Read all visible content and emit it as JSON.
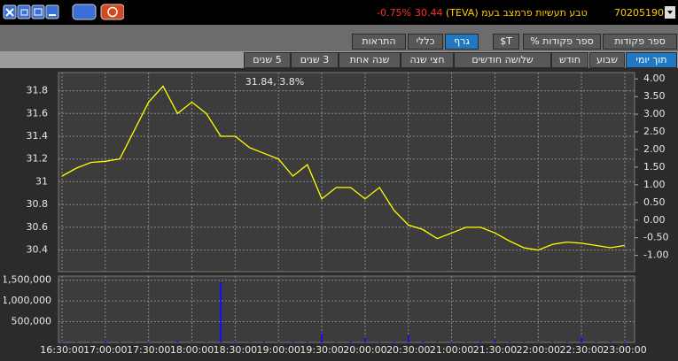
{
  "header": {
    "account": "70205190",
    "name": "טבע תעשיות פרמצב בעמ (TEVA)",
    "price": "30.44",
    "change": "-0.75%"
  },
  "tabs": {
    "items": [
      "ספר פקודות",
      "ספר פקודות %",
      "T$",
      "גרף",
      "כללי",
      "התראות"
    ],
    "active": 3
  },
  "periods": {
    "items": [
      "תוך יומי",
      "שבוע",
      "חודש",
      "שלושה חודשים",
      "חצי שנה",
      "שנה אחת",
      "3 שנים",
      "5 שנים"
    ],
    "active": 0
  },
  "chart_data": {
    "type": "line",
    "annotation": "31.84, 3.8%",
    "grid": true,
    "x": [
      "16:30:00",
      "16:40:00",
      "16:50:00",
      "17:00:00",
      "17:10:00",
      "17:20:00",
      "17:30:00",
      "17:40:00",
      "17:50:00",
      "18:00:00",
      "18:10:00",
      "18:20:00",
      "18:30:00",
      "18:40:00",
      "18:50:00",
      "19:00:00",
      "19:10:00",
      "19:20:00",
      "19:30:00",
      "19:40:00",
      "19:50:00",
      "20:00:00",
      "20:10:00",
      "20:20:00",
      "20:30:00",
      "20:40:00",
      "20:50:00",
      "21:00:00",
      "21:10:00",
      "21:20:00",
      "21:30:00",
      "21:40:00",
      "21:50:00",
      "22:00:00",
      "22:10:00",
      "22:20:00",
      "22:30:00",
      "22:40:00",
      "22:50:00",
      "23:00:00"
    ],
    "series": [
      {
        "color": "#ffff00",
        "values": [
          31.05,
          31.12,
          31.17,
          31.18,
          31.2,
          31.45,
          31.7,
          31.84,
          31.6,
          31.7,
          31.6,
          31.4,
          31.4,
          31.3,
          31.25,
          31.2,
          31.05,
          31.15,
          30.85,
          30.95,
          30.95,
          30.85,
          30.95,
          30.75,
          30.62,
          30.58,
          30.5,
          30.55,
          30.6,
          30.6,
          30.55,
          30.48,
          30.42,
          30.4,
          30.45,
          30.47,
          30.46,
          30.44,
          30.42,
          30.44
        ]
      }
    ],
    "ylim": [
      30.21,
      31.96
    ],
    "yticks": [
      30.4,
      30.6,
      30.8,
      31,
      31.2,
      31.4,
      31.6,
      31.8
    ],
    "y2lim": [
      -1.46,
      4.18
    ],
    "y2ticks": [
      {
        "value": 4,
        "label": "4.00"
      },
      {
        "value": 3.5,
        "label": "3.50"
      },
      {
        "value": 3,
        "label": "3.00"
      },
      {
        "value": 2.5,
        "label": "2.50"
      },
      {
        "value": 2,
        "label": "2.00"
      },
      {
        "value": 1.5,
        "label": "1.50"
      },
      {
        "value": 1,
        "label": "1.00"
      },
      {
        "value": 0.5,
        "label": "0.50"
      },
      {
        "value": 0,
        "label": "0.00"
      },
      {
        "value": -0.5,
        "label": "-0.50"
      },
      {
        "value": -1,
        "label": "-1.00"
      }
    ],
    "volume": {
      "type": "bar",
      "color": "#1010ff",
      "values": [
        30000,
        20000,
        15000,
        50000,
        20000,
        15000,
        25000,
        15000,
        40000,
        20000,
        15000,
        1450000,
        30000,
        20000,
        25000,
        20000,
        30000,
        25000,
        220000,
        20000,
        30000,
        120000,
        25000,
        30000,
        180000,
        30000,
        20000,
        25000,
        20000,
        30000,
        60000,
        20000,
        15000,
        20000,
        25000,
        20000,
        130000,
        20000,
        25000,
        30000
      ],
      "ylim": [
        0,
        1600000
      ],
      "yticks": [
        {
          "value": 500000,
          "label": "500,000"
        },
        {
          "value": 1000000,
          "label": "1,000,000"
        },
        {
          "value": 1500000,
          "label": "1,500,000"
        }
      ]
    }
  }
}
